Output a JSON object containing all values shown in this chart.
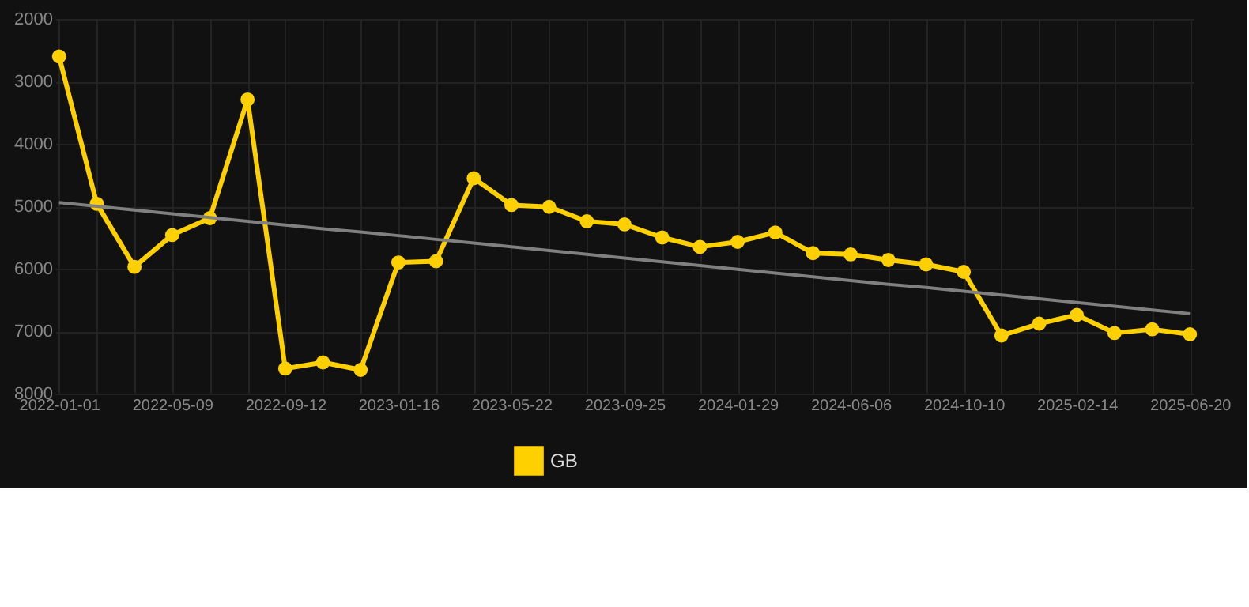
{
  "chart_data": {
    "type": "line",
    "categories": [
      "2022-01-01",
      null,
      null,
      "2022-05-09",
      null,
      null,
      "2022-09-12",
      null,
      null,
      "2023-01-16",
      null,
      null,
      "2023-05-22",
      null,
      null,
      "2023-09-25",
      null,
      null,
      "2024-01-29",
      null,
      null,
      "2024-06-06",
      null,
      null,
      "2024-10-10",
      null,
      null,
      "2025-02-14",
      null,
      null,
      "2025-06-20"
    ],
    "series": [
      {
        "name": "GB",
        "color": "#ffd000",
        "marker": "circle",
        "values": [
          2600,
          4960,
          5970,
          5460,
          5190,
          3290,
          7600,
          7500,
          7620,
          5900,
          5880,
          4550,
          4980,
          5010,
          5240,
          5290,
          5500,
          5650,
          5570,
          5420,
          5750,
          5770,
          5860,
          5930,
          6050,
          7070,
          6880,
          6740,
          7030,
          6970,
          7050
        ]
      },
      {
        "type": "line",
        "color": "#808080",
        "marker": "none",
        "values": [
          4940,
          5000,
          5060,
          5120,
          5180,
          5240,
          5300,
          5360,
          5410,
          5470,
          5530,
          5590,
          5650,
          5710,
          5770,
          5830,
          5890,
          5950,
          6010,
          6070,
          6130,
          6190,
          6250,
          6300,
          6360,
          6420,
          6480,
          6540,
          6600,
          6660,
          6720
        ]
      }
    ],
    "ylim": [
      8000,
      2000
    ],
    "yticks": [
      2000,
      3000,
      4000,
      5000,
      6000,
      7000,
      8000
    ],
    "grid": true,
    "legend": "bottom",
    "line_style": "solid"
  }
}
